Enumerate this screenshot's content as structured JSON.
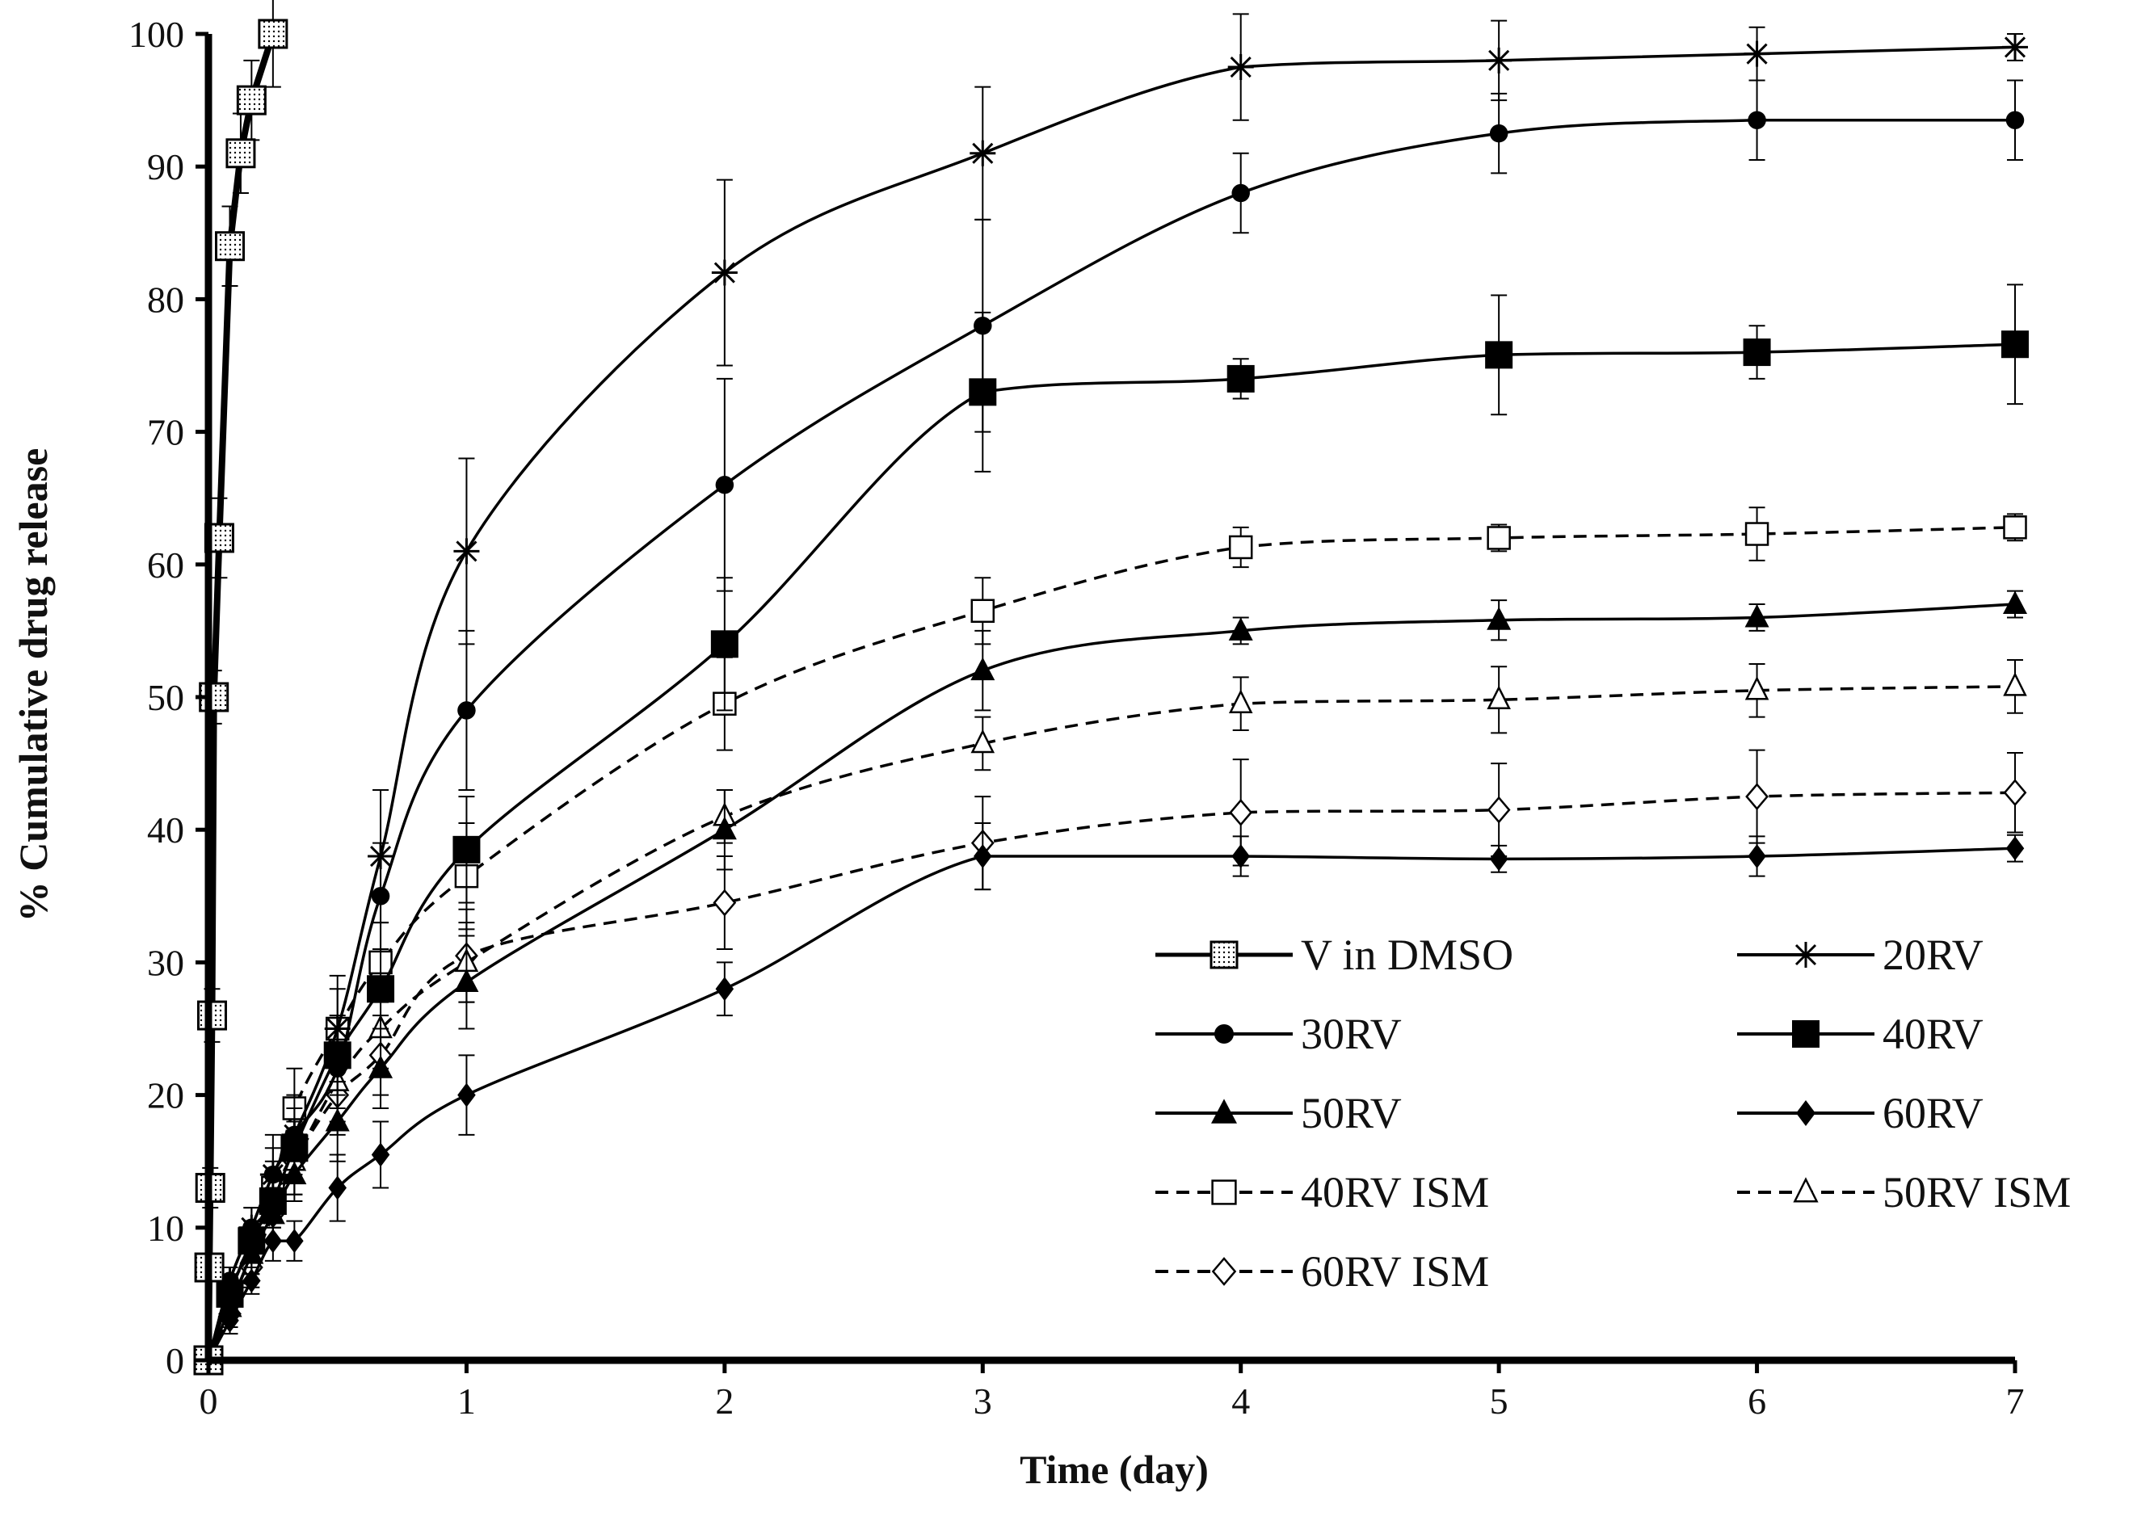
{
  "chart_data": {
    "type": "line",
    "title": "",
    "xlabel": "Time (day)",
    "ylabel": "% Cumulative drug release",
    "xlim": [
      0,
      7
    ],
    "ylim": [
      0,
      100
    ],
    "xticks": [
      "0",
      "1",
      "2",
      "3",
      "4",
      "5",
      "6",
      "7"
    ],
    "yticks": [
      "0",
      "10",
      "20",
      "30",
      "40",
      "50",
      "60",
      "70",
      "80",
      "90",
      "100"
    ],
    "grid": false,
    "legend_position": "bottom-right",
    "series": [
      {
        "name": "V in DMSO",
        "marker": "dotted-square",
        "dashed": false,
        "x": [
          0,
          0.0035,
          0.007,
          0.014,
          0.021,
          0.042,
          0.083,
          0.125,
          0.167,
          0.25
        ],
        "y": [
          0,
          7,
          13,
          26,
          50,
          62,
          84,
          91,
          95,
          100
        ],
        "err": [
          1,
          1,
          1.5,
          2,
          2,
          3,
          3,
          3,
          3,
          4
        ]
      },
      {
        "name": "20RV",
        "marker": "star",
        "dashed": false,
        "x": [
          0,
          0.083,
          0.167,
          0.25,
          0.333,
          0.5,
          0.667,
          1,
          2,
          3,
          4,
          5,
          6,
          7
        ],
        "y": [
          0,
          6,
          10,
          14,
          17,
          25,
          38,
          61,
          82,
          91,
          97.5,
          98,
          98.5,
          99
        ],
        "err": [
          0,
          1,
          1.5,
          3,
          3,
          4,
          5,
          7,
          7,
          5,
          4,
          3,
          2,
          1
        ]
      },
      {
        "name": "30RV",
        "marker": "circle",
        "dashed": false,
        "x": [
          0,
          0.083,
          0.167,
          0.25,
          0.333,
          0.5,
          0.667,
          1,
          2,
          3,
          4,
          5,
          6,
          7
        ],
        "y": [
          0,
          6,
          10,
          14,
          17,
          22,
          35,
          49,
          66,
          78,
          88,
          92.5,
          93.5,
          93.5
        ],
        "err": [
          0,
          1,
          1.5,
          2,
          2,
          3,
          4,
          6,
          8,
          8,
          3,
          3,
          3,
          3
        ]
      },
      {
        "name": "40RV",
        "marker": "square",
        "dashed": false,
        "x": [
          0,
          0.083,
          0.167,
          0.25,
          0.333,
          0.5,
          0.667,
          1,
          2,
          3,
          4,
          5,
          6,
          7
        ],
        "y": [
          0,
          5,
          9,
          12,
          16,
          23,
          28,
          38.5,
          54,
          73,
          74,
          75.8,
          76,
          76.6
        ],
        "err": [
          0,
          1,
          1.5,
          2,
          2,
          3,
          3,
          4,
          5,
          6,
          1.5,
          4.5,
          2,
          4.5
        ]
      },
      {
        "name": "50RV",
        "marker": "triangle",
        "dashed": false,
        "x": [
          0,
          0.083,
          0.167,
          0.25,
          0.333,
          0.5,
          0.667,
          1,
          2,
          3,
          4,
          5,
          6,
          7
        ],
        "y": [
          0,
          4,
          8,
          11,
          14,
          18,
          22,
          28.5,
          40,
          52,
          55,
          55.8,
          56,
          57
        ],
        "err": [
          0,
          1,
          1.5,
          2,
          2,
          3,
          3,
          3.5,
          3,
          3,
          1,
          1.5,
          1,
          1
        ]
      },
      {
        "name": "60RV",
        "marker": "diamond",
        "dashed": false,
        "x": [
          0,
          0.083,
          0.167,
          0.25,
          0.333,
          0.5,
          0.667,
          1,
          2,
          3,
          4,
          5,
          6,
          7
        ],
        "y": [
          0,
          3,
          6,
          9,
          9,
          13,
          15.5,
          20,
          28,
          38,
          38,
          37.8,
          38,
          38.6
        ],
        "err": [
          0,
          1,
          1,
          1.5,
          1.5,
          2.5,
          2.5,
          3,
          2,
          2.5,
          1.5,
          1,
          1.5,
          1
        ]
      },
      {
        "name": "40RV ISM",
        "marker": "open-square",
        "dashed": true,
        "x": [
          0,
          0.083,
          0.167,
          0.25,
          0.333,
          0.5,
          0.667,
          1,
          2,
          3,
          4,
          5,
          6,
          7
        ],
        "y": [
          0,
          5,
          9,
          13,
          19,
          25,
          30,
          36.5,
          49.5,
          56.5,
          61.3,
          62,
          62.3,
          62.8
        ],
        "err": [
          0,
          1,
          1.5,
          2,
          3,
          3,
          3,
          4,
          3.5,
          2.5,
          1.5,
          1,
          2,
          1
        ]
      },
      {
        "name": "50RV ISM",
        "marker": "open-triangle",
        "dashed": true,
        "x": [
          0,
          0.083,
          0.167,
          0.25,
          0.333,
          0.5,
          0.667,
          1,
          2,
          3,
          4,
          5,
          6,
          7
        ],
        "y": [
          0,
          4,
          8,
          12,
          15,
          21,
          25,
          30,
          41,
          46.5,
          49.5,
          49.8,
          50.5,
          50.8
        ],
        "err": [
          0,
          1,
          1.5,
          2,
          2.5,
          3,
          3,
          3,
          2,
          2,
          2,
          2.5,
          2,
          2
        ]
      },
      {
        "name": "60RV ISM",
        "marker": "open-diamond",
        "dashed": true,
        "x": [
          0,
          0.083,
          0.167,
          0.25,
          0.333,
          0.5,
          0.667,
          1,
          2,
          3,
          4,
          5,
          6,
          7
        ],
        "y": [
          0,
          3.5,
          7,
          11,
          15,
          20,
          23,
          30.5,
          34.5,
          39,
          41.3,
          41.5,
          42.5,
          42.8
        ],
        "err": [
          0,
          1,
          1.5,
          2,
          2.5,
          3,
          3,
          3.5,
          3.5,
          3.5,
          4,
          3.5,
          3.5,
          3
        ]
      }
    ]
  }
}
